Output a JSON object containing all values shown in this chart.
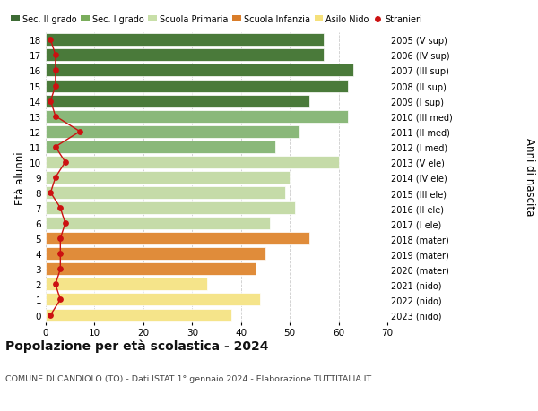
{
  "ages": [
    0,
    1,
    2,
    3,
    4,
    5,
    6,
    7,
    8,
    9,
    10,
    11,
    12,
    13,
    14,
    15,
    16,
    17,
    18
  ],
  "bar_values": [
    38,
    44,
    33,
    43,
    45,
    54,
    46,
    51,
    49,
    50,
    60,
    47,
    52,
    62,
    54,
    62,
    63,
    57,
    57
  ],
  "bar_colors": [
    "#f5e48a",
    "#f5e48a",
    "#f5e48a",
    "#e08c3a",
    "#e08c3a",
    "#e08c3a",
    "#c5dba8",
    "#c5dba8",
    "#c5dba8",
    "#c5dba8",
    "#c5dba8",
    "#8ab87a",
    "#8ab87a",
    "#8ab87a",
    "#4a7a3a",
    "#4a7a3a",
    "#4a7a3a",
    "#4a7a3a",
    "#4a7a3a"
  ],
  "stranieri_values": [
    1,
    3,
    2,
    3,
    3,
    3,
    4,
    3,
    1,
    2,
    4,
    2,
    7,
    2,
    1,
    2,
    2,
    2,
    1
  ],
  "right_labels": [
    "2023 (nido)",
    "2022 (nido)",
    "2021 (nido)",
    "2020 (mater)",
    "2019 (mater)",
    "2018 (mater)",
    "2017 (I ele)",
    "2016 (II ele)",
    "2015 (III ele)",
    "2014 (IV ele)",
    "2013 (V ele)",
    "2012 (I med)",
    "2011 (II med)",
    "2010 (III med)",
    "2009 (I sup)",
    "2008 (II sup)",
    "2007 (III sup)",
    "2006 (IV sup)",
    "2005 (V sup)"
  ],
  "xlim": [
    0,
    70
  ],
  "xticks": [
    0,
    10,
    20,
    30,
    40,
    50,
    60,
    70
  ],
  "ylabel": "Età alunni",
  "right_ylabel": "Anni di nascita",
  "title": "Popolazione per età scolastica - 2024",
  "subtitle": "COMUNE DI CANDIOLO (TO) - Dati ISTAT 1° gennaio 2024 - Elaborazione TUTTITALIA.IT",
  "legend_labels": [
    "Sec. II grado",
    "Sec. I grado",
    "Scuola Primaria",
    "Scuola Infanzia",
    "Asilo Nido",
    "Stranieri"
  ],
  "legend_colors": [
    "#3d6b35",
    "#7aad5c",
    "#c8dfa8",
    "#d97d2a",
    "#f5e07a",
    "#cc1111"
  ],
  "bar_height": 0.82,
  "background_color": "#ffffff",
  "grid_color": "#cccccc",
  "stranieri_color": "#cc1111"
}
